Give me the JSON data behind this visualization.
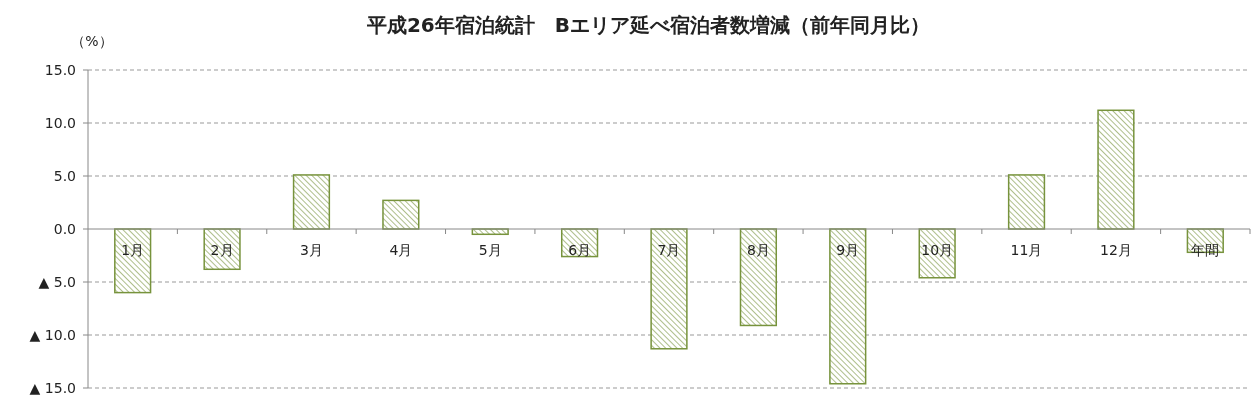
{
  "chart_data": {
    "type": "bar",
    "title": "平成26年宿泊統計　Bエリア延べ宿泊者数増減（前年同月比）",
    "ylabel": "（%）",
    "categories": [
      "1月",
      "2月",
      "3月",
      "4月",
      "5月",
      "6月",
      "7月",
      "8月",
      "9月",
      "10月",
      "11月",
      "12月",
      "年間"
    ],
    "series": [
      {
        "color": "#77933c",
        "values": [
          -6.0,
          -3.8,
          5.1,
          2.7,
          -0.5,
          -2.6,
          -11.3,
          -9.1,
          -14.6,
          -4.6,
          5.1,
          11.2,
          -2.2
        ]
      }
    ],
    "ylim": [
      -15,
      15
    ],
    "yticks": [
      {
        "value": 15,
        "label": "15.0"
      },
      {
        "value": 10,
        "label": "10.0"
      },
      {
        "value": 5,
        "label": "5.0"
      },
      {
        "value": 0,
        "label": "0.0"
      },
      {
        "value": -5,
        "label": "▲ 5.0"
      },
      {
        "value": -10,
        "label": "▲ 10.0"
      },
      {
        "value": -15,
        "label": "▲ 15.0"
      }
    ],
    "grid": "y"
  }
}
